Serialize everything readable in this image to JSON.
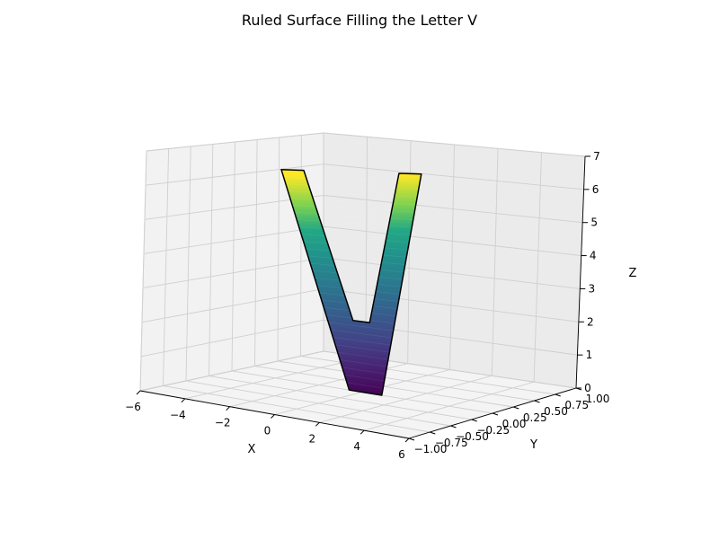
{
  "chart_data": {
    "type": "surface3d",
    "title": "Ruled Surface Filling the Letter V",
    "xlabel": "X",
    "ylabel": "Y",
    "zlabel": "Z",
    "xlim": [
      -6,
      6
    ],
    "ylim": [
      -1,
      1
    ],
    "zlim": [
      0,
      7
    ],
    "x_ticks": [
      "−6",
      "−4",
      "−2",
      "0",
      "2",
      "4",
      "6"
    ],
    "y_ticks": [
      "−1.00",
      "−0.75",
      "−0.50",
      "−0.25",
      "0.00",
      "0.25",
      "0.50",
      "0.75",
      "1.00"
    ],
    "z_ticks": [
      "0",
      "1",
      "2",
      "3",
      "4",
      "5",
      "6",
      "7"
    ],
    "colormap": "viridis",
    "outline": {
      "left_arm": {
        "top": [
          -3.5,
          6.2
        ],
        "bottom": [
          -0.6,
          0
        ]
      },
      "right_arm": {
        "bottom": [
          0.9,
          0
        ],
        "top": [
          4.0,
          6.2
        ]
      },
      "inner_v": [
        [
          -2.3,
          6.2
        ],
        [
          -0.2,
          2.0
        ],
        [
          0.6,
          2.0
        ],
        [
          2.8,
          6.2
        ]
      ]
    }
  }
}
